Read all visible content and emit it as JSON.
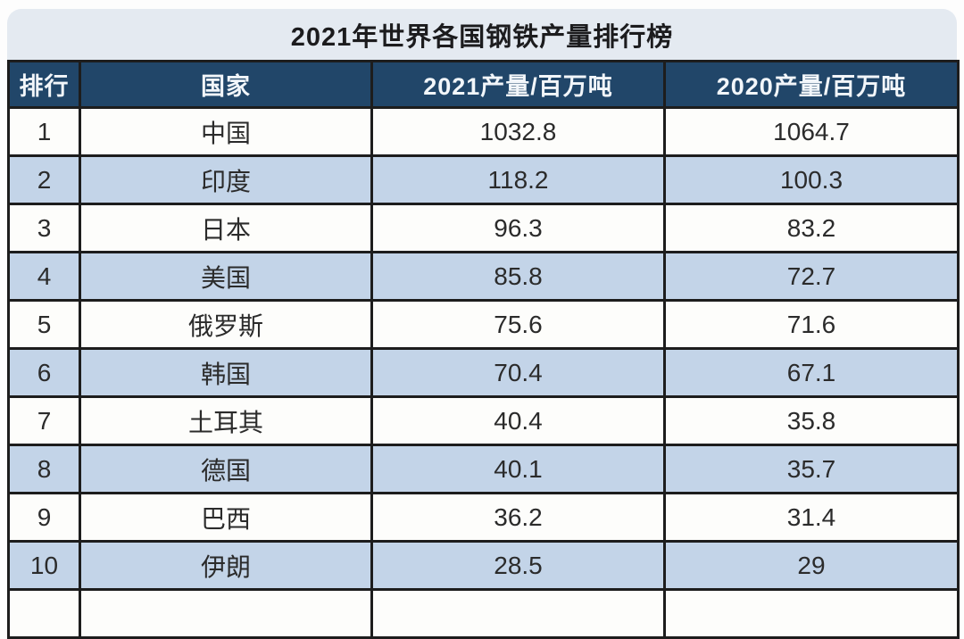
{
  "title": "2021年世界各国钢铁产量排行榜",
  "table": {
    "columns": [
      "排行",
      "国家",
      "2021产量/百万吨",
      "2020产量/百万吨"
    ],
    "rows": [
      {
        "rank": "1",
        "country": "中国",
        "y2021": "1032.8",
        "y2020": "1064.7"
      },
      {
        "rank": "2",
        "country": "印度",
        "y2021": "118.2",
        "y2020": "100.3"
      },
      {
        "rank": "3",
        "country": "日本",
        "y2021": "96.3",
        "y2020": "83.2"
      },
      {
        "rank": "4",
        "country": "美国",
        "y2021": "85.8",
        "y2020": "72.7"
      },
      {
        "rank": "5",
        "country": "俄罗斯",
        "y2021": "75.6",
        "y2020": "71.6"
      },
      {
        "rank": "6",
        "country": "韩国",
        "y2021": "70.4",
        "y2020": "67.1"
      },
      {
        "rank": "7",
        "country": "土耳其",
        "y2021": "40.4",
        "y2020": "35.8"
      },
      {
        "rank": "8",
        "country": "德国",
        "y2021": "40.1",
        "y2020": "35.7"
      },
      {
        "rank": "9",
        "country": "巴西",
        "y2021": "36.2",
        "y2020": "31.4"
      },
      {
        "rank": "10",
        "country": "伊朗",
        "y2021": "28.5",
        "y2020": "29"
      }
    ]
  },
  "colors": {
    "title_bg": "#e4eaf1",
    "header_bg": "#214669",
    "header_text": "#f2f6fa",
    "row_bg": "#fdfdfb",
    "row_alt_bg": "#c3d4e8",
    "border": "#1d1d1d"
  },
  "chart_data": {
    "type": "table",
    "title": "2021年世界各国钢铁产量排行榜",
    "columns": [
      "排行",
      "国家",
      "2021产量/百万吨",
      "2020产量/百万吨"
    ],
    "rows": [
      [
        1,
        "中国",
        1032.8,
        1064.7
      ],
      [
        2,
        "印度",
        118.2,
        100.3
      ],
      [
        3,
        "日本",
        96.3,
        83.2
      ],
      [
        4,
        "美国",
        85.8,
        72.7
      ],
      [
        5,
        "俄罗斯",
        75.6,
        71.6
      ],
      [
        6,
        "韩国",
        70.4,
        67.1
      ],
      [
        7,
        "土耳其",
        40.4,
        35.8
      ],
      [
        8,
        "德国",
        40.1,
        35.7
      ],
      [
        9,
        "巴西",
        36.2,
        31.4
      ],
      [
        10,
        "伊朗",
        28.5,
        29
      ]
    ]
  }
}
